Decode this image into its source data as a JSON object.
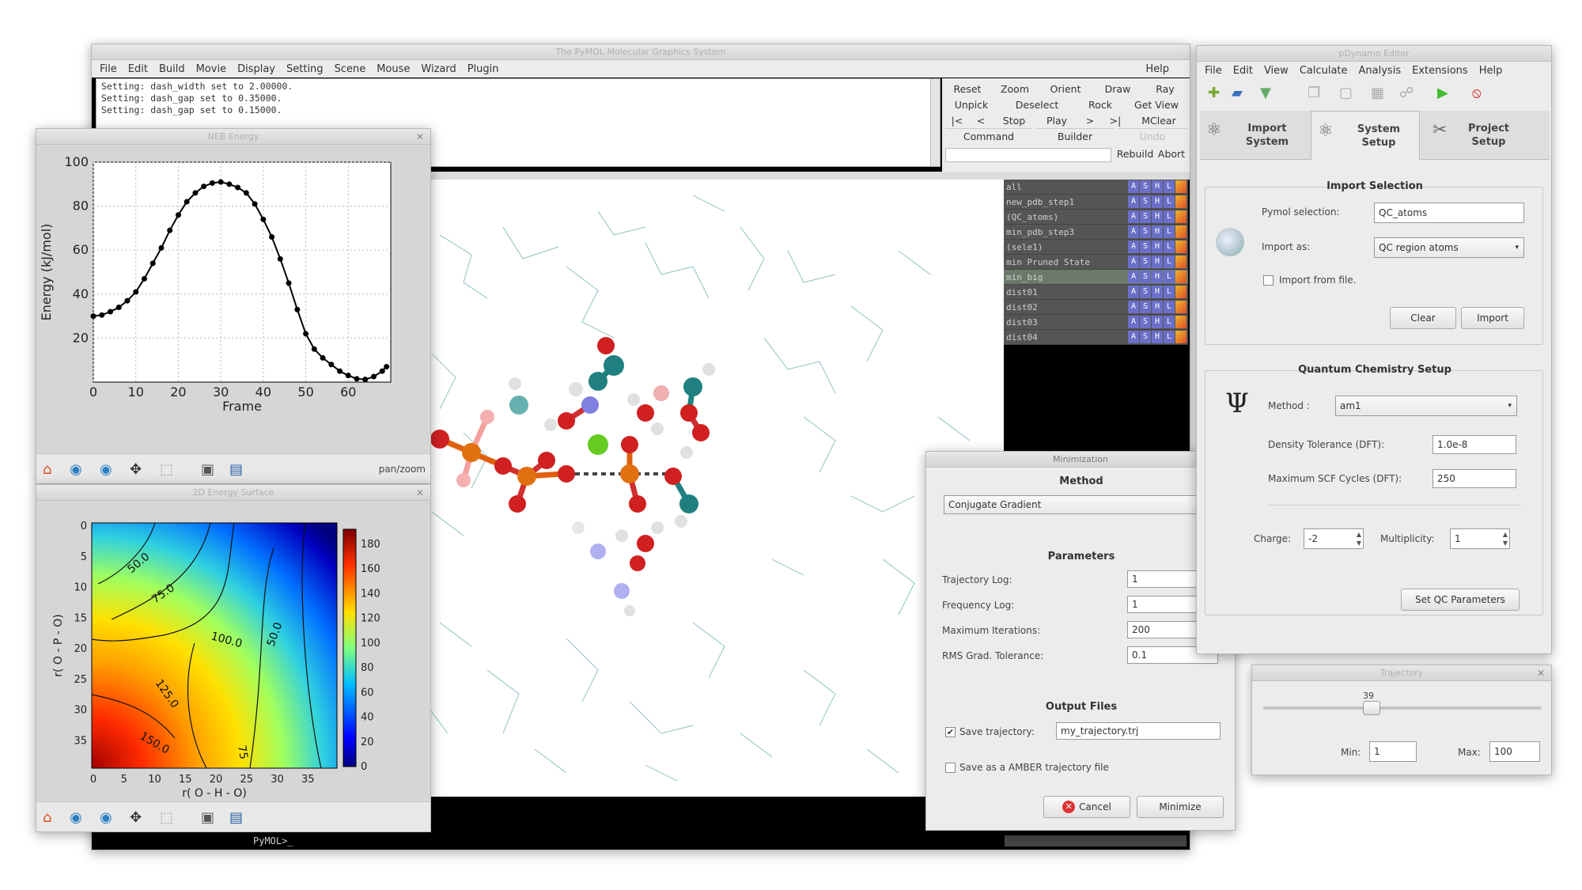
{
  "pymol": {
    "title": "The PyMOL Molecular Graphics System",
    "menu": [
      "File",
      "Edit",
      "Build",
      "Movie",
      "Display",
      "Setting",
      "Scene",
      "Mouse",
      "Wizard",
      "Plugin"
    ],
    "help": "Help",
    "log": [
      "Setting: dash_width set to 2.00000.",
      "Setting: dash_gap set to 0.35000.",
      "Setting: dash_gap set to 0.15000."
    ],
    "buttons_row1": [
      "Reset",
      "Zoom",
      "Orient",
      "Draw",
      "Ray"
    ],
    "buttons_row2": [
      "Unpick",
      "Deselect",
      "Rock",
      "Get View"
    ],
    "buttons_row3": [
      "|<",
      "<",
      "Stop",
      "Play",
      ">",
      ">|",
      "MClear"
    ],
    "buttons_row4": [
      "Command",
      "Builder",
      "Undo"
    ],
    "rebuild": "Rebuild",
    "abort": "Abort",
    "command_prompt": "PyMOL>_",
    "objects": [
      "all",
      "new_pdb_step1",
      "(QC_atoms)",
      "min_pdb_step3",
      "(sele1)",
      "min Pruned State",
      "min_big",
      "dist01",
      "dist02",
      "dist03",
      "dist04"
    ],
    "object_cells": [
      "A",
      "S",
      "H",
      "L"
    ]
  },
  "energy_plot": {
    "window_title": "NEB Energy",
    "xlabel": "Frame",
    "ylabel": "Energy (kJ/mol)",
    "xticks": [
      "0",
      "10",
      "20",
      "30",
      "40",
      "50",
      "60"
    ],
    "yticks": [
      "20",
      "40",
      "60",
      "80",
      "100"
    ],
    "mode": "pan/zoom"
  },
  "chart_data": [
    {
      "type": "line",
      "xlabel": "Frame",
      "ylabel": "Energy (kJ/mol)",
      "xlim": [
        0,
        70
      ],
      "ylim": [
        0,
        100
      ],
      "x": [
        0,
        2,
        4,
        6,
        8,
        10,
        12,
        14,
        16,
        18,
        20,
        22,
        24,
        26,
        28,
        30,
        32,
        34,
        36,
        38,
        40,
        42,
        44,
        46,
        48,
        50,
        52,
        54,
        56,
        58,
        60,
        62,
        64,
        66,
        68,
        69
      ],
      "y": [
        30,
        30.5,
        32,
        34,
        37,
        41,
        47,
        54,
        61,
        69,
        76,
        82,
        86,
        89,
        90.5,
        91,
        90,
        88.5,
        86,
        81,
        74,
        66,
        56,
        45,
        33,
        22,
        15,
        11,
        8,
        5,
        3,
        1.5,
        1.2,
        2.5,
        5,
        7
      ]
    },
    {
      "type": "heatmap",
      "xlabel": "r( O - H - O)",
      "ylabel": "r( O - P - O)",
      "xticks": [
        "0",
        "5",
        "10",
        "15",
        "20",
        "25",
        "30",
        "35"
      ],
      "yticks": [
        "0",
        "5",
        "10",
        "15",
        "20",
        "25",
        "30",
        "35"
      ],
      "colorbar": [
        "0",
        "20",
        "40",
        "60",
        "80",
        "100",
        "120",
        "140",
        "160",
        "180"
      ],
      "contour_labels": [
        "50.0",
        "75.0",
        "100.0",
        "125.0",
        "150.0",
        "75",
        "50.0"
      ]
    }
  ],
  "heatmap_window": {
    "title": "2D Energy Surface"
  },
  "toolbar_icons": [
    "home-icon",
    "back-icon",
    "forward-icon",
    "pan-icon",
    "zoom-icon",
    "configure-icon",
    "save-icon"
  ],
  "minimization": {
    "title": "Minimization",
    "method_header": "Method",
    "method_value": "Conjugate Gradient",
    "params_header": "Parameters",
    "params": [
      {
        "label": "Trajectory Log:",
        "value": "1"
      },
      {
        "label": "Frequency Log:",
        "value": "1"
      },
      {
        "label": "Maximum Iterations:",
        "value": "200"
      },
      {
        "label": "RMS Grad. Tolerance:",
        "value": "0.1"
      }
    ],
    "output_header": "Output Files",
    "save_traj_label": "Save trajectory:",
    "save_traj_value": "my_trajectory.trj",
    "save_amber_label": "Save as a AMBER trajectory file",
    "cancel": "Cancel",
    "minimize": "Minimize"
  },
  "easymol": {
    "title": "pDynamo Editor",
    "menu": [
      "File",
      "Edit",
      "View",
      "Calculate",
      "Analysis",
      "Extensions",
      "Help"
    ],
    "tabs": [
      "Import System",
      "System Setup",
      "Project Setup"
    ],
    "import_header": "Import Selection",
    "pymol_sel_label": "Pymol selection:",
    "pymol_sel_value": "QC_atoms",
    "import_as_label": "Import as:",
    "import_as_value": "QC region atoms",
    "import_file_label": "Import from file.",
    "clear": "Clear",
    "import": "Import",
    "qc_header": "Quantum Chemistry Setup",
    "method_label": "Method :",
    "method_value": "am1",
    "density_label": "Density Tolerance (DFT):",
    "density_value": "1.0e-8",
    "scf_label": "Maximum SCF Cycles (DFT):",
    "scf_value": "250",
    "charge_label": "Charge:",
    "charge_value": "-2",
    "mult_label": "Multiplicity:",
    "mult_value": "1",
    "set_qc": "Set QC Parameters"
  },
  "frame_slider": {
    "title": "Trajectory",
    "value": "39",
    "level": 0.39,
    "min_label": "Min:",
    "min_value": "1",
    "max_label": "Max:",
    "max_value": "100"
  }
}
